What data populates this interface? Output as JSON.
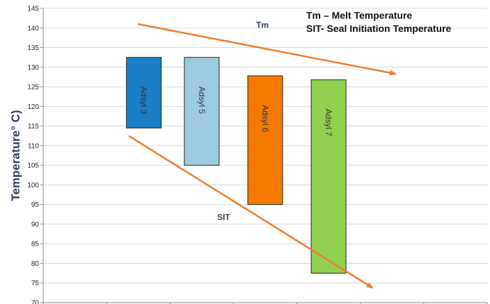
{
  "chart_data": {
    "type": "floating-bar",
    "ylabel": "Temperature° C)",
    "ylim": [
      70,
      145
    ],
    "y_ticks": [
      70,
      75,
      80,
      85,
      90,
      95,
      100,
      105,
      110,
      115,
      120,
      125,
      130,
      135,
      140,
      145
    ],
    "grid": true,
    "legend": [
      "Tm – Melt Temperature",
      "SIT- Seal Initiation Temperature"
    ],
    "bars": [
      {
        "label": "Adsyl 3",
        "low": 114.5,
        "high": 132.5,
        "color": "#1a7fc6"
      },
      {
        "label": "Adsyl 5",
        "low": 105,
        "high": 132.5,
        "color": "#9ecae1"
      },
      {
        "label": "Adsyl 6",
        "low": 95,
        "high": 127.8,
        "color": "#f47b00"
      },
      {
        "label": "Adsyl 7",
        "low": 77.5,
        "high": 126.8,
        "color": "#92d050"
      }
    ],
    "trend_arrows": [
      {
        "label": "Tm",
        "from_y": 141,
        "to_y": 128.3,
        "color": "#f07c2a"
      },
      {
        "label": "SIT",
        "from_y": 112.5,
        "to_y": 73.8,
        "color": "#f07c2a"
      }
    ]
  }
}
